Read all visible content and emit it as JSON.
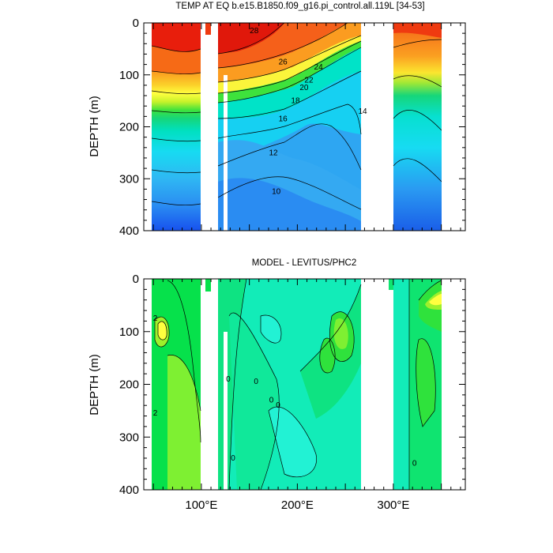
{
  "chart_data": [
    {
      "type": "heatmap",
      "title": "TEMP AT EQ b.e15.B1850.f09_g16.pi_control.all.119L [34-53]",
      "xlabel": "",
      "ylabel": "DEPTH (m)",
      "xlim": [
        40,
        375
      ],
      "ylim": [
        400,
        0
      ],
      "x_ticks": [
        100,
        200,
        300
      ],
      "x_tick_labels": [
        "100°E",
        "200°E",
        "300°E"
      ],
      "y_ticks": [
        0,
        100,
        200,
        300,
        400
      ],
      "y_tick_labels": [
        "0",
        "100",
        "200",
        "300",
        "400"
      ],
      "contour_labels": [
        {
          "text": "28",
          "lon": 155,
          "depth": 15
        },
        {
          "text": "26",
          "lon": 185,
          "depth": 75
        },
        {
          "text": "24",
          "lon": 222,
          "depth": 85
        },
        {
          "text": "22",
          "lon": 212,
          "depth": 110
        },
        {
          "text": "20",
          "lon": 207,
          "depth": 125
        },
        {
          "text": "18",
          "lon": 198,
          "depth": 150
        },
        {
          "text": "16",
          "lon": 185,
          "depth": 185
        },
        {
          "text": "14",
          "lon": 268,
          "depth": 170
        },
        {
          "text": "12",
          "lon": 175,
          "depth": 250
        },
        {
          "text": "10",
          "lon": 178,
          "depth": 325
        }
      ],
      "land_gaps": [
        [
          98,
          112
        ],
        [
          112,
          120
        ],
        [
          127,
          131
        ],
        [
          277,
          314
        ]
      ]
    },
    {
      "type": "heatmap",
      "title": "MODEL - LEVITUS/PHC2",
      "xlabel": "",
      "ylabel": "DEPTH (m)",
      "xlim": [
        40,
        375
      ],
      "ylim": [
        400,
        0
      ],
      "x_ticks": [
        100,
        200,
        300
      ],
      "x_tick_labels": [
        "100°E",
        "200°E",
        "300°E"
      ],
      "y_ticks": [
        0,
        100,
        200,
        300,
        400
      ],
      "y_tick_labels": [
        "0",
        "100",
        "200",
        "300",
        "400"
      ],
      "contour_labels": [
        {
          "text": "2",
          "lon": 52,
          "depth": 75
        },
        {
          "text": "2",
          "lon": 52,
          "depth": 255
        },
        {
          "text": "0",
          "lon": 128,
          "depth": 190
        },
        {
          "text": "0",
          "lon": 157,
          "depth": 195
        },
        {
          "text": "0",
          "lon": 173,
          "depth": 230
        },
        {
          "text": "0",
          "lon": 180,
          "depth": 240
        },
        {
          "text": "0",
          "lon": 133,
          "depth": 340
        },
        {
          "text": "0",
          "lon": 322,
          "depth": 350
        }
      ],
      "land_gaps": [
        [
          98,
          112
        ],
        [
          112,
          120
        ],
        [
          127,
          131
        ],
        [
          277,
          314
        ]
      ]
    }
  ]
}
